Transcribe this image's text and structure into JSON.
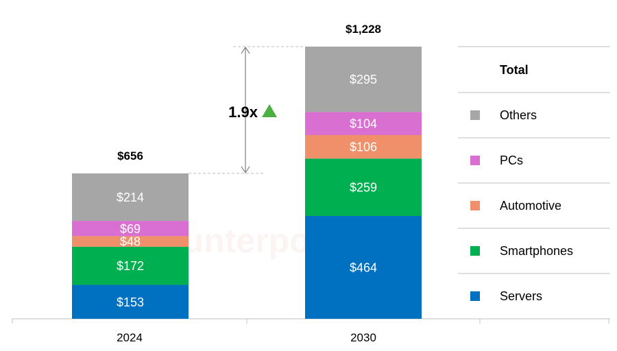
{
  "chart_data": {
    "type": "bar",
    "stacked": true,
    "categories": [
      "2024",
      "2030"
    ],
    "series": [
      {
        "name": "Servers",
        "values": [
          153,
          464
        ],
        "color": "#0070c0"
      },
      {
        "name": "Smartphones",
        "values": [
          172,
          259
        ],
        "color": "#00b050"
      },
      {
        "name": "Automotive",
        "values": [
          48,
          106
        ],
        "color": "#f0906a"
      },
      {
        "name": "PCs",
        "values": [
          69,
          104
        ],
        "color": "#d96fd0"
      },
      {
        "name": "Others",
        "values": [
          214,
          295
        ],
        "color": "#a6a6a6"
      }
    ],
    "segment_labels": [
      [
        "$153",
        "$172",
        "$48",
        "$69",
        "$214"
      ],
      [
        "$464",
        "$259",
        "$106",
        "$104",
        "$295"
      ]
    ],
    "totals": [
      656,
      1228
    ],
    "total_labels": [
      "$656",
      "$1,228"
    ],
    "growth_label": "1.9x",
    "growth_arrow_color": "#4caf3f",
    "legend_title": "Total",
    "legend_placement": "right",
    "ylim": [
      0,
      1228
    ],
    "grid": false,
    "watermark": "Counterpoint"
  }
}
